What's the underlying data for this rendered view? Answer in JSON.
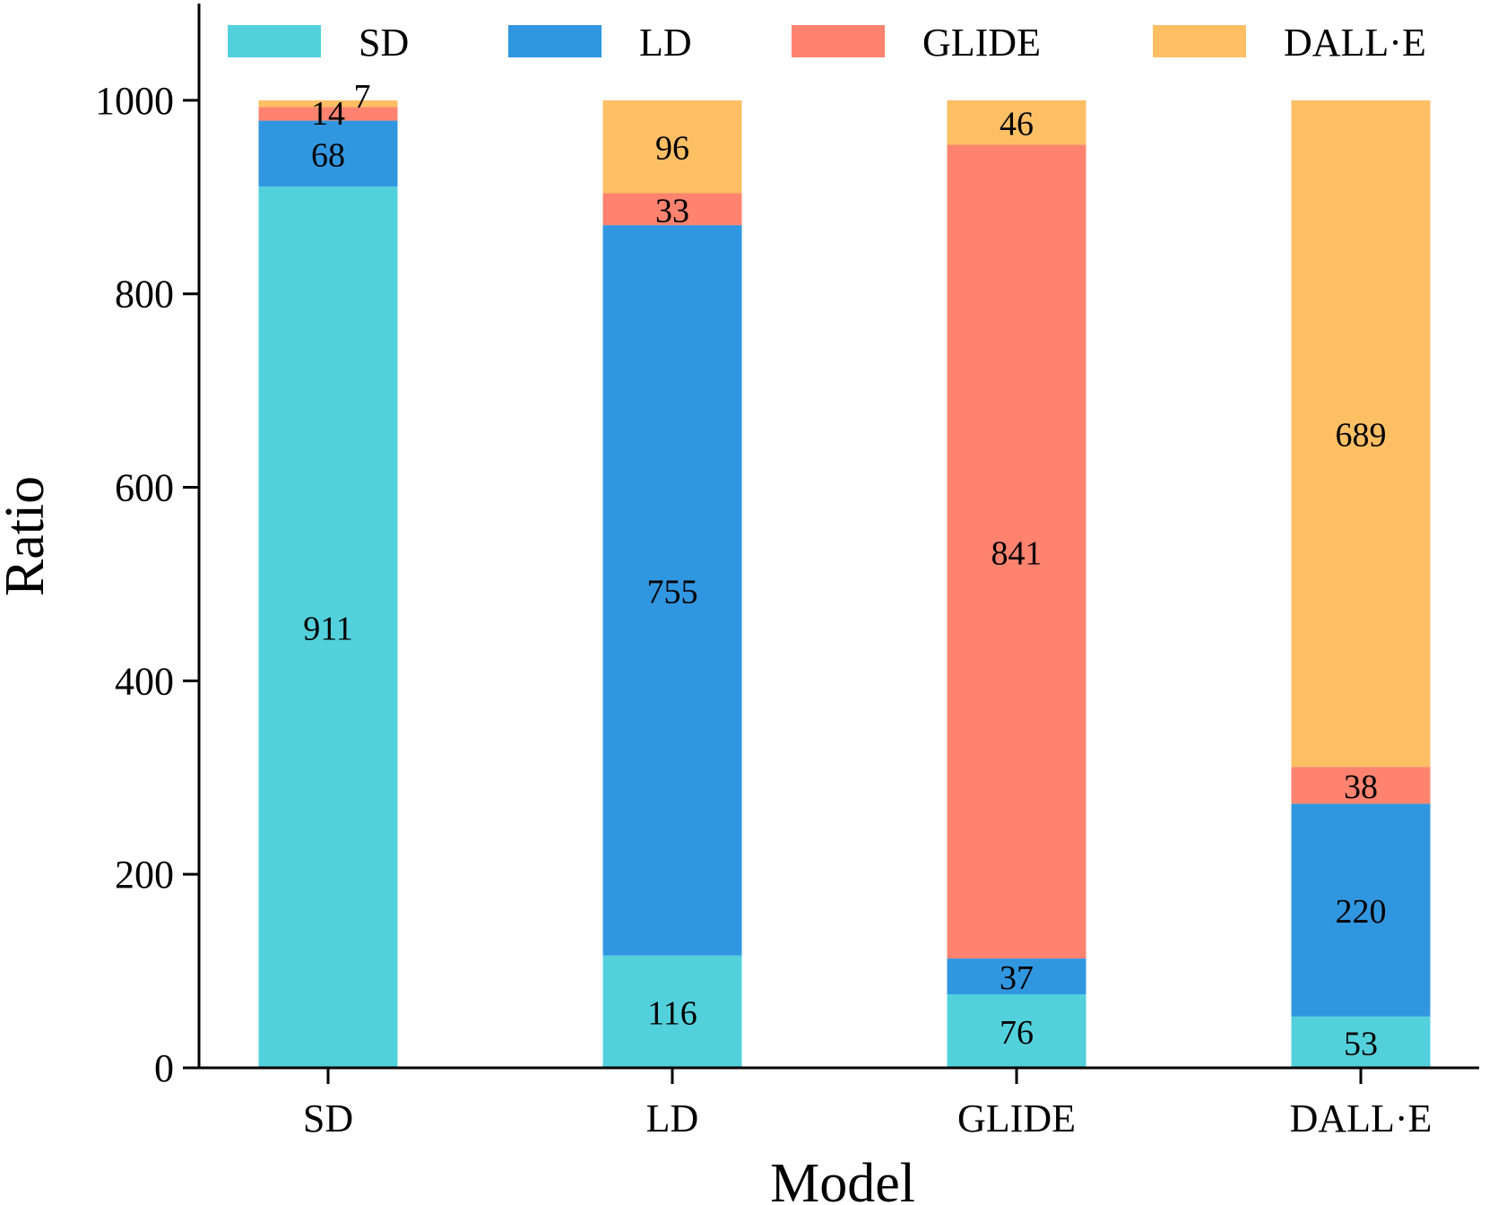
{
  "chart_data": {
    "type": "bar",
    "stacked": true,
    "title": "",
    "xlabel": "Model",
    "ylabel": "Ratio",
    "ylim": [
      0,
      1100
    ],
    "yticks": [
      0,
      200,
      400,
      600,
      800,
      1000
    ],
    "grid": false,
    "legend_position": "top",
    "categories": [
      "SD",
      "LD",
      "GLIDE",
      "DALL·E"
    ],
    "series": [
      {
        "name": "SD",
        "color": "#52D1DC",
        "values": [
          911,
          116,
          76,
          53
        ]
      },
      {
        "name": "LD",
        "color": "#3196E0",
        "values": [
          68,
          755,
          37,
          220
        ]
      },
      {
        "name": "GLIDE",
        "color": "#FF836F",
        "values": [
          14,
          33,
          841,
          38
        ]
      },
      {
        "name": "DALL·E",
        "color": "#FDBF64",
        "values": [
          7,
          96,
          46,
          689
        ]
      }
    ],
    "data_labels": [
      [
        "911",
        "68",
        "14",
        "7"
      ],
      [
        "116",
        "755",
        "33",
        "96"
      ],
      [
        "76",
        "37",
        "841",
        "46"
      ],
      [
        "53",
        "220",
        "38",
        "689"
      ]
    ]
  }
}
